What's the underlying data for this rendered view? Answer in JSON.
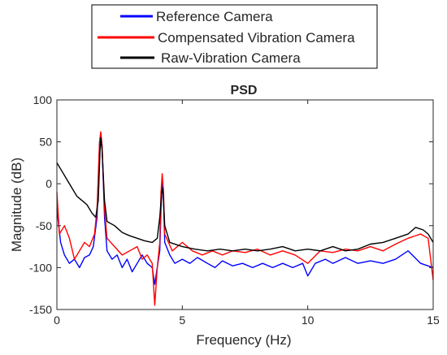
{
  "chart_data": {
    "type": "line",
    "title": "PSD",
    "xlabel": "Frequency (Hz)",
    "ylabel": "Magnitude (dB)",
    "xlim": [
      0,
      15
    ],
    "ylim": [
      -150,
      100
    ],
    "xticks": [
      0,
      5,
      10,
      15
    ],
    "yticks": [
      -150,
      -100,
      -50,
      0,
      50,
      100
    ],
    "grid": false,
    "legend_position": "top",
    "series": [
      {
        "name": "Reference Camera",
        "color": "#0000ff",
        "points": [
          [
            0,
            -30
          ],
          [
            0.15,
            -70
          ],
          [
            0.3,
            -85
          ],
          [
            0.5,
            -95
          ],
          [
            0.7,
            -90
          ],
          [
            0.9,
            -100
          ],
          [
            1.1,
            -88
          ],
          [
            1.3,
            -85
          ],
          [
            1.45,
            -75
          ],
          [
            1.6,
            -40
          ],
          [
            1.7,
            50
          ],
          [
            1.75,
            60
          ],
          [
            1.8,
            45
          ],
          [
            1.9,
            -40
          ],
          [
            2.0,
            -80
          ],
          [
            2.2,
            -90
          ],
          [
            2.4,
            -85
          ],
          [
            2.6,
            -100
          ],
          [
            2.8,
            -90
          ],
          [
            3.0,
            -105
          ],
          [
            3.2,
            -95
          ],
          [
            3.4,
            -85
          ],
          [
            3.6,
            -95
          ],
          [
            3.8,
            -100
          ],
          [
            3.9,
            -120
          ],
          [
            4.0,
            -100
          ],
          [
            4.1,
            -80
          ],
          [
            4.15,
            -30
          ],
          [
            4.2,
            5
          ],
          [
            4.25,
            -20
          ],
          [
            4.3,
            -70
          ],
          [
            4.5,
            -85
          ],
          [
            4.7,
            -95
          ],
          [
            5.0,
            -90
          ],
          [
            5.3,
            -95
          ],
          [
            5.6,
            -88
          ],
          [
            6.0,
            -95
          ],
          [
            6.3,
            -100
          ],
          [
            6.6,
            -92
          ],
          [
            7.0,
            -98
          ],
          [
            7.4,
            -95
          ],
          [
            7.8,
            -100
          ],
          [
            8.2,
            -95
          ],
          [
            8.6,
            -100
          ],
          [
            9.0,
            -95
          ],
          [
            9.4,
            -100
          ],
          [
            9.8,
            -95
          ],
          [
            10.0,
            -110
          ],
          [
            10.3,
            -95
          ],
          [
            10.7,
            -90
          ],
          [
            11.0,
            -95
          ],
          [
            11.5,
            -88
          ],
          [
            12.0,
            -95
          ],
          [
            12.5,
            -92
          ],
          [
            13.0,
            -95
          ],
          [
            13.5,
            -90
          ],
          [
            14.0,
            -80
          ],
          [
            14.5,
            -95
          ],
          [
            15.0,
            -100
          ]
        ]
      },
      {
        "name": "Compensated Vibration Camera",
        "color": "#ff0000",
        "points": [
          [
            0,
            -10
          ],
          [
            0.1,
            -60
          ],
          [
            0.3,
            -50
          ],
          [
            0.5,
            -65
          ],
          [
            0.7,
            -90
          ],
          [
            0.9,
            -80
          ],
          [
            1.1,
            -70
          ],
          [
            1.3,
            -75
          ],
          [
            1.5,
            -60
          ],
          [
            1.6,
            -30
          ],
          [
            1.7,
            50
          ],
          [
            1.75,
            62
          ],
          [
            1.8,
            45
          ],
          [
            1.9,
            -30
          ],
          [
            2.0,
            -65
          ],
          [
            2.3,
            -75
          ],
          [
            2.6,
            -85
          ],
          [
            2.9,
            -80
          ],
          [
            3.2,
            -75
          ],
          [
            3.4,
            -90
          ],
          [
            3.6,
            -85
          ],
          [
            3.8,
            -95
          ],
          [
            3.9,
            -145
          ],
          [
            4.0,
            -100
          ],
          [
            4.1,
            -70
          ],
          [
            4.15,
            -10
          ],
          [
            4.2,
            12
          ],
          [
            4.25,
            -10
          ],
          [
            4.3,
            -60
          ],
          [
            4.6,
            -80
          ],
          [
            5.0,
            -70
          ],
          [
            5.4,
            -80
          ],
          [
            5.8,
            -85
          ],
          [
            6.2,
            -80
          ],
          [
            6.6,
            -85
          ],
          [
            7.0,
            -80
          ],
          [
            7.5,
            -82
          ],
          [
            8.0,
            -78
          ],
          [
            8.5,
            -85
          ],
          [
            9.0,
            -80
          ],
          [
            9.5,
            -85
          ],
          [
            10.0,
            -95
          ],
          [
            10.5,
            -80
          ],
          [
            11.0,
            -82
          ],
          [
            11.5,
            -78
          ],
          [
            12.0,
            -80
          ],
          [
            12.5,
            -75
          ],
          [
            13.0,
            -80
          ],
          [
            13.5,
            -72
          ],
          [
            14.0,
            -65
          ],
          [
            14.5,
            -60
          ],
          [
            14.8,
            -65
          ],
          [
            15.0,
            -115
          ]
        ]
      },
      {
        "name": "Raw-Vibration Camera",
        "color": "#000000",
        "points": [
          [
            0,
            25
          ],
          [
            0.2,
            15
          ],
          [
            0.4,
            5
          ],
          [
            0.6,
            -5
          ],
          [
            0.8,
            -15
          ],
          [
            1.0,
            -20
          ],
          [
            1.2,
            -25
          ],
          [
            1.4,
            -35
          ],
          [
            1.55,
            -40
          ],
          [
            1.65,
            -20
          ],
          [
            1.72,
            40
          ],
          [
            1.75,
            55
          ],
          [
            1.8,
            40
          ],
          [
            1.9,
            -20
          ],
          [
            2.0,
            -45
          ],
          [
            2.3,
            -50
          ],
          [
            2.6,
            -58
          ],
          [
            2.9,
            -62
          ],
          [
            3.2,
            -65
          ],
          [
            3.5,
            -68
          ],
          [
            3.8,
            -70
          ],
          [
            4.0,
            -65
          ],
          [
            4.1,
            -40
          ],
          [
            4.18,
            -10
          ],
          [
            4.22,
            -5
          ],
          [
            4.3,
            -50
          ],
          [
            4.5,
            -70
          ],
          [
            5.0,
            -75
          ],
          [
            5.5,
            -78
          ],
          [
            6.0,
            -80
          ],
          [
            6.5,
            -78
          ],
          [
            7.0,
            -80
          ],
          [
            7.5,
            -78
          ],
          [
            8.0,
            -80
          ],
          [
            8.5,
            -78
          ],
          [
            9.0,
            -75
          ],
          [
            9.5,
            -80
          ],
          [
            10.0,
            -78
          ],
          [
            10.5,
            -80
          ],
          [
            11.0,
            -75
          ],
          [
            11.5,
            -80
          ],
          [
            12.0,
            -78
          ],
          [
            12.5,
            -72
          ],
          [
            13.0,
            -70
          ],
          [
            13.5,
            -65
          ],
          [
            14.0,
            -60
          ],
          [
            14.3,
            -52
          ],
          [
            14.6,
            -55
          ],
          [
            14.8,
            -60
          ],
          [
            15.0,
            -70
          ]
        ]
      }
    ]
  }
}
